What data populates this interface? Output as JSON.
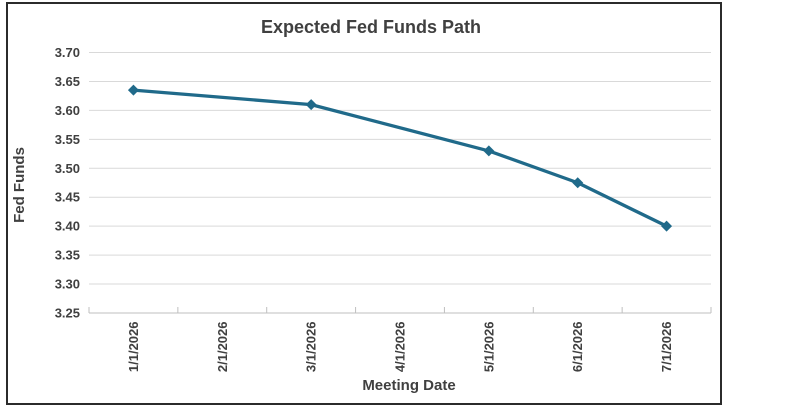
{
  "chart_data": {
    "type": "line",
    "title": "Expected Fed Funds Path",
    "xlabel": "Meeting Date",
    "ylabel": "Fed Funds",
    "categories": [
      "1/1/2026",
      "2/1/2026",
      "3/1/2026",
      "4/1/2026",
      "5/1/2026",
      "6/1/2026",
      "7/1/2026"
    ],
    "series": [
      {
        "name": "Expected Fed Funds",
        "points": [
          {
            "x": "1/1/2026",
            "y": 3.635
          },
          {
            "x": "3/1/2026",
            "y": 3.61
          },
          {
            "x": "5/1/2026",
            "y": 3.53
          },
          {
            "x": "6/1/2026",
            "y": 3.475
          },
          {
            "x": "7/1/2026",
            "y": 3.4
          }
        ]
      }
    ],
    "ylim": [
      3.25,
      3.7
    ],
    "ytick_step": 0.05,
    "ytick_labels": [
      "3.25",
      "3.30",
      "3.35",
      "3.40",
      "3.45",
      "3.50",
      "3.55",
      "3.60",
      "3.65",
      "3.70"
    ],
    "grid": "horizontal-only",
    "legend_position": "none",
    "marker": "diamond",
    "colors": {
      "series": "#206A8A",
      "text": "#404040",
      "gridline": "#D9D9D9",
      "axis": "#BFBFBF",
      "frame_border": "#2B2B2B",
      "background": "#FFFFFF"
    }
  }
}
